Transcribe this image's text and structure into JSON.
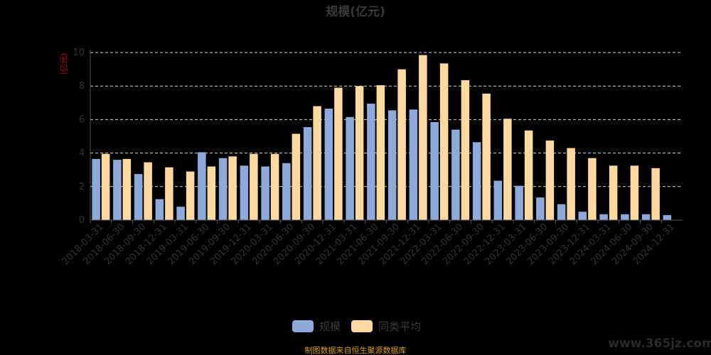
{
  "chart_data": {
    "type": "bar",
    "title": "规模(亿元)",
    "ylabel": "(亿元)",
    "ylim": [
      0,
      10
    ],
    "yticks": [
      0,
      2,
      4,
      6,
      8,
      10
    ],
    "grid": true,
    "legend_position": "bottom",
    "categories": [
      "2018-03-31",
      "2018-06-30",
      "2018-09-30",
      "2018-12-31",
      "2019-03-31",
      "2019-06-30",
      "2019-09-30",
      "2019-12-31",
      "2020-03-31",
      "2020-06-30",
      "2020-09-30",
      "2020-12-31",
      "2021-03-31",
      "2021-06-30",
      "2021-09-30",
      "2021-12-31",
      "2022-03-31",
      "2022-06-30",
      "2022-09-30",
      "2022-12-31",
      "2023-03-31",
      "2023-06-30",
      "2023-09-30",
      "2023-12-31",
      "2024-03-31",
      "2024-06-30",
      "2024-09-30",
      "2024-12-31"
    ],
    "series": [
      {
        "name": "规模",
        "color": "#8eaadb",
        "values": [
          3.65,
          3.6,
          2.75,
          1.25,
          0.8,
          4.05,
          3.7,
          3.25,
          3.2,
          3.4,
          5.55,
          6.65,
          6.15,
          6.95,
          6.55,
          6.6,
          5.85,
          5.4,
          4.65,
          2.35,
          2.05,
          1.35,
          0.95,
          0.5,
          0.35,
          0.35,
          0.35,
          0.3
        ]
      },
      {
        "name": "同类平均",
        "color": "#ffd9a0",
        "values": [
          3.95,
          3.65,
          3.45,
          3.15,
          2.9,
          3.2,
          3.8,
          3.95,
          3.95,
          5.15,
          6.8,
          7.9,
          8.0,
          8.05,
          9.0,
          9.85,
          9.35,
          8.35,
          7.55,
          6.05,
          5.35,
          4.75,
          4.3,
          3.7,
          3.25,
          3.25,
          3.1,
          null
        ]
      }
    ]
  },
  "footer": {
    "source": "制图数据来自恒生聚源数据库",
    "watermark": "www.365jz.com"
  }
}
